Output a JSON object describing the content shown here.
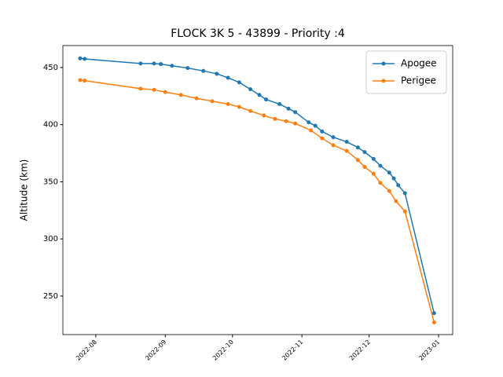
{
  "chart_data": {
    "type": "line",
    "title": "FLOCK 3K 5 - 43899 - Priority :4",
    "ylabel": "Altitude (km)",
    "xlim": [
      19190.3,
      19364.3
    ],
    "ylim": [
      216.3,
      469.2
    ],
    "xticks": [
      {
        "value": 19205,
        "label": "2022-08"
      },
      {
        "value": 19236,
        "label": "2022-09"
      },
      {
        "value": 19266,
        "label": "2022-10"
      },
      {
        "value": 19297,
        "label": "2022-11"
      },
      {
        "value": 19327,
        "label": "2022-12"
      },
      {
        "value": 19358,
        "label": "2023-01"
      }
    ],
    "yticks": [
      250,
      300,
      350,
      400,
      450
    ],
    "legend": "upper right",
    "series": [
      {
        "name": "Apogee",
        "color": "#1f77b4",
        "x": [
          19198,
          19200,
          19225,
          19231,
          19234,
          19239,
          19246,
          19253,
          19259,
          19264,
          19269,
          19274,
          19278,
          19281,
          19287,
          19291,
          19294,
          19300,
          19303,
          19306,
          19311,
          19317,
          19322,
          19325,
          19329,
          19332,
          19336,
          19338,
          19340,
          19343,
          19356
        ],
        "values": [
          458,
          457.5,
          453.5,
          453.5,
          453,
          451.5,
          449.5,
          447,
          444.5,
          441,
          437,
          431,
          426,
          422,
          418,
          414,
          411,
          402,
          399,
          394,
          389,
          385,
          380,
          376,
          370,
          364,
          358,
          353,
          347,
          340,
          235
        ]
      },
      {
        "name": "Perigee",
        "color": "#ff7f0e",
        "x": [
          19198,
          19200,
          19225,
          19231,
          19236,
          19243,
          19250,
          19257,
          19264,
          19269,
          19274,
          19280,
          19285,
          19290,
          19294,
          19301,
          19306,
          19311,
          19317,
          19322,
          19325,
          19329,
          19332,
          19336,
          19339,
          19343,
          19356
        ],
        "values": [
          439,
          438.5,
          431.5,
          430.5,
          428.5,
          426,
          423,
          420.5,
          418,
          415.5,
          412,
          408,
          405,
          403,
          401,
          395,
          388,
          382,
          377,
          369,
          363,
          357,
          349,
          342,
          333,
          324,
          227
        ]
      }
    ]
  }
}
